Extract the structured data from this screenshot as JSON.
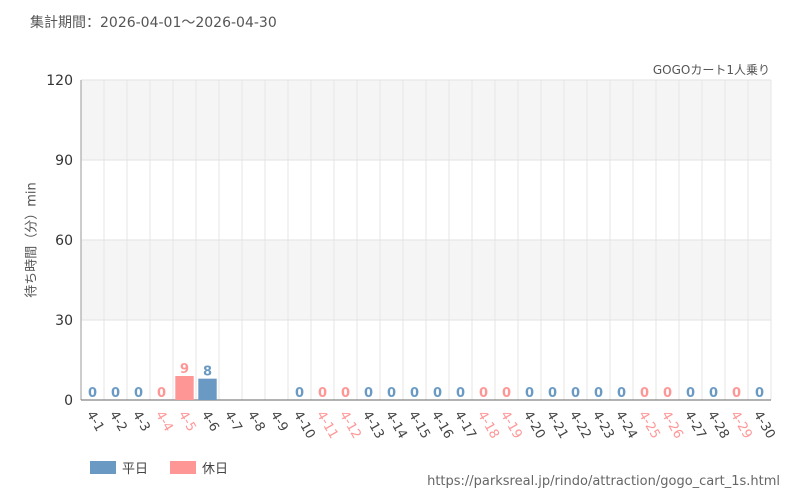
{
  "period_text": "集計期間：2026-04-01～2026-04-30",
  "source_url": "https://parksreal.jp/rindo/attraction/gogo_cart_1s.html",
  "colors": {
    "weekday": "#6a9ac4",
    "holiday": "#ff9696",
    "axis_text": "#555555"
  },
  "chart_data": {
    "type": "bar",
    "title": "GOGOカート1人乗り",
    "ylabel": "待ち時間（分）min",
    "xlabel": "",
    "ylim": [
      0,
      120
    ],
    "yticks": [
      0,
      30,
      60,
      90,
      120
    ],
    "grid": true,
    "legend": "bottom-left",
    "categories": [
      "4-1",
      "4-2",
      "4-3",
      "4-4",
      "4-5",
      "4-6",
      "4-7",
      "4-8",
      "4-9",
      "4-10",
      "4-11",
      "4-12",
      "4-13",
      "4-14",
      "4-15",
      "4-16",
      "4-17",
      "4-18",
      "4-19",
      "4-20",
      "4-21",
      "4-22",
      "4-23",
      "4-24",
      "4-25",
      "4-26",
      "4-27",
      "4-28",
      "4-29",
      "4-30"
    ],
    "day_type": [
      "weekday",
      "weekday",
      "weekday",
      "holiday",
      "holiday",
      "weekday",
      "weekday",
      "weekday",
      "weekday",
      "weekday",
      "holiday",
      "holiday",
      "weekday",
      "weekday",
      "weekday",
      "weekday",
      "weekday",
      "holiday",
      "holiday",
      "weekday",
      "weekday",
      "weekday",
      "weekday",
      "weekday",
      "holiday",
      "holiday",
      "weekday",
      "weekday",
      "holiday",
      "weekday"
    ],
    "values": [
      0,
      0,
      0,
      0,
      9,
      8,
      null,
      null,
      null,
      0,
      0,
      0,
      0,
      0,
      0,
      0,
      0,
      0,
      0,
      0,
      0,
      0,
      0,
      0,
      0,
      0,
      0,
      0,
      0,
      0
    ],
    "series": [
      {
        "name": "平日",
        "color": "#6a9ac4"
      },
      {
        "name": "休日",
        "color": "#ff9696"
      }
    ]
  }
}
